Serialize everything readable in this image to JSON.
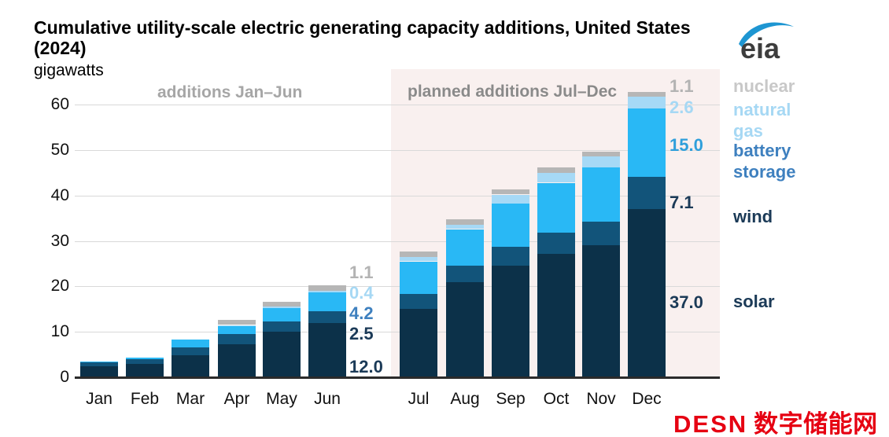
{
  "header": {
    "title_line1": "Cumulative utility-scale electric generating capacity additions, United States",
    "title_line2": "(2024)",
    "units": "gigawatts",
    "logo_text": "eia"
  },
  "sections": {
    "left_label": "additions Jan–Jun",
    "right_label": "planned additions Jul–Dec"
  },
  "chart_data": {
    "type": "bar",
    "stacked": true,
    "title": "Cumulative utility-scale electric generating capacity additions, United States (2024)",
    "ylabel": "gigawatts",
    "ylim": [
      0,
      60
    ],
    "yticks": [
      0,
      10,
      20,
      30,
      40,
      50,
      60
    ],
    "grid": true,
    "categories": [
      "Jan",
      "Feb",
      "Mar",
      "Apr",
      "May",
      "Jun",
      "Jul",
      "Aug",
      "Sep",
      "Oct",
      "Nov",
      "Dec"
    ],
    "series": [
      {
        "name": "solar",
        "color": "#0c3149",
        "values": [
          2.4,
          2.9,
          4.9,
          7.3,
          10.0,
          12.0,
          15.1,
          20.9,
          24.6,
          27.2,
          29.1,
          37.0
        ]
      },
      {
        "name": "wind",
        "color": "#12547a",
        "values": [
          0.9,
          1.1,
          1.7,
          2.2,
          2.2,
          2.5,
          3.3,
          3.6,
          4.1,
          4.7,
          5.2,
          7.1
        ]
      },
      {
        "name": "battery storage",
        "color": "#29b8f5",
        "values": [
          0.2,
          0.3,
          1.7,
          1.9,
          3.1,
          4.2,
          7.1,
          8.1,
          9.6,
          10.9,
          11.9,
          15.0
        ]
      },
      {
        "name": "natural gas",
        "color": "#a6d9f6",
        "values": [
          0.0,
          0.0,
          0.0,
          0.1,
          0.2,
          0.4,
          1.0,
          1.0,
          1.9,
          2.2,
          2.4,
          2.6
        ]
      },
      {
        "name": "nuclear",
        "color": "#b6b6b6",
        "values": [
          0.0,
          0.0,
          0.0,
          1.1,
          1.1,
          1.1,
          1.1,
          1.1,
          1.1,
          1.1,
          1.1,
          1.1
        ]
      }
    ],
    "annotations": {
      "jun": [
        {
          "value": "1.1",
          "series": "nuclear",
          "color": "#b3b3b3"
        },
        {
          "value": "0.4",
          "series": "natural gas",
          "color": "#a6d8f4"
        },
        {
          "value": "4.2",
          "series": "battery storage",
          "color": "#3e80bf"
        },
        {
          "value": "2.5",
          "series": "wind",
          "color": "#1b3a57"
        },
        {
          "value": "12.0",
          "series": "solar",
          "color": "#1b3a57"
        }
      ],
      "dec": [
        {
          "value": "1.1",
          "series": "nuclear",
          "color": "#b3b3b3"
        },
        {
          "value": "2.6",
          "series": "natural gas",
          "color": "#a6d8f4"
        },
        {
          "value": "15.0",
          "series": "battery storage",
          "color": "#2f9fdb"
        },
        {
          "value": "7.1",
          "series": "wind",
          "color": "#1b3a57"
        },
        {
          "value": "37.0",
          "series": "solar",
          "color": "#1b3a57"
        }
      ]
    },
    "legend_position": "right"
  },
  "legend": {
    "items": [
      {
        "label": "nuclear",
        "color": "#c8c8c8"
      },
      {
        "label": "natural\ngas",
        "color": "#a6d8f4"
      },
      {
        "label": "battery\nstorage",
        "color": "#3e80bf"
      },
      {
        "label": "wind",
        "color": "#1b3a57"
      },
      {
        "label": "solar",
        "color": "#1b3a57"
      }
    ]
  },
  "watermark": {
    "latin": "DESN",
    "cjk": "数字储能网",
    "color": "#e60012"
  },
  "colors": {
    "planned_region_bg": "#f9f0ef",
    "gridline": "#d9d9d9",
    "axis": "#2b2b2b"
  }
}
